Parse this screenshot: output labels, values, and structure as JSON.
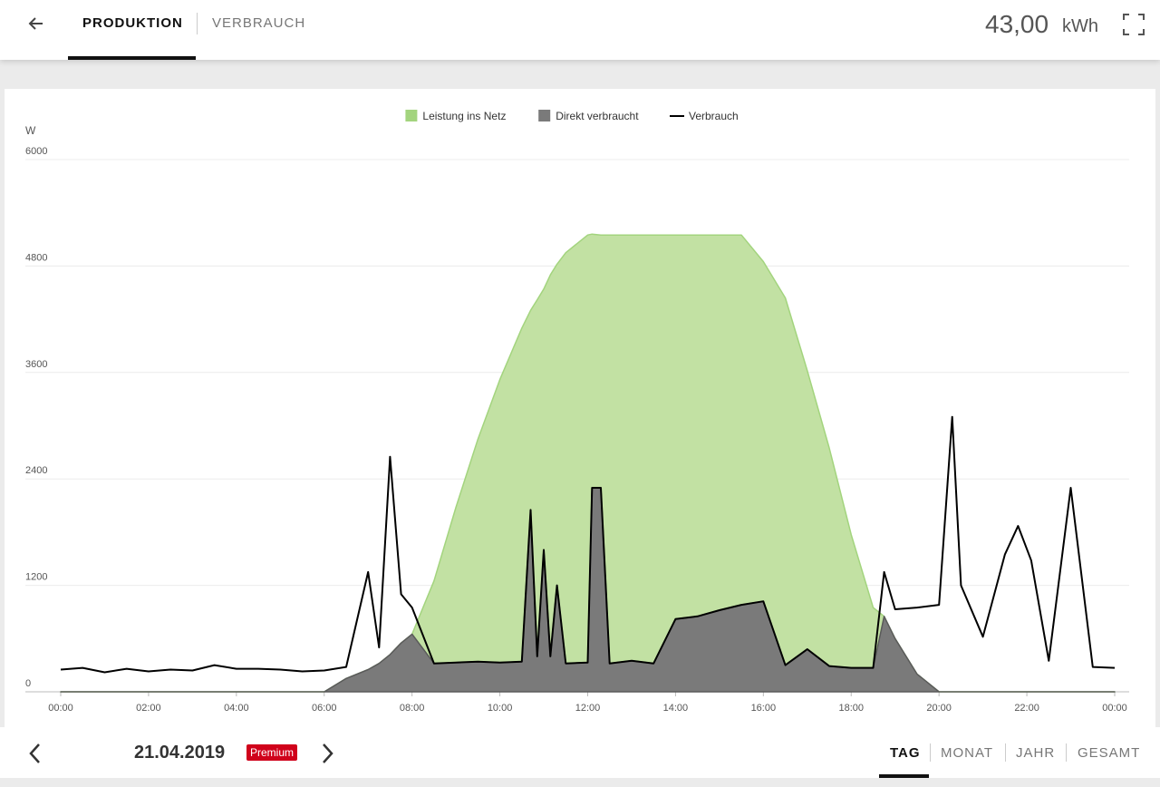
{
  "header": {
    "tabs": [
      "PRODUKTION",
      "VERBRAUCH"
    ],
    "total_value": "43,00",
    "total_unit": "kWh"
  },
  "chart_data": {
    "type": "area",
    "stacked": true,
    "y_label": "W",
    "xlim": [
      0,
      24
    ],
    "ylim": [
      0,
      6000
    ],
    "yticks": [
      0,
      1200,
      2400,
      3600,
      4800,
      6000
    ],
    "grid": true,
    "legend": "top",
    "xticks": [
      {
        "value": 0,
        "label": "00:00"
      },
      {
        "value": 2,
        "label": "02:00"
      },
      {
        "value": 4,
        "label": "04:00"
      },
      {
        "value": 6,
        "label": "06:00"
      },
      {
        "value": 8,
        "label": "08:00"
      },
      {
        "value": 10,
        "label": "10:00"
      },
      {
        "value": 12,
        "label": "12:00"
      },
      {
        "value": 14,
        "label": "14:00"
      },
      {
        "value": 16,
        "label": "16:00"
      },
      {
        "value": 18,
        "label": "18:00"
      },
      {
        "value": 20,
        "label": "20:00"
      },
      {
        "value": 22,
        "label": "22:00"
      },
      {
        "value": 24,
        "label": "00:00"
      }
    ],
    "x": [
      0,
      0.5,
      1,
      1.5,
      2,
      2.5,
      3,
      3.5,
      4,
      4.5,
      5,
      5.5,
      6,
      6.5,
      7,
      7.25,
      7.5,
      7.75,
      8,
      8.5,
      9,
      9.5,
      10,
      10.5,
      10.7,
      10.85,
      11,
      11.15,
      11.3,
      11.5,
      12,
      12.1,
      12.3,
      12.5,
      13,
      13.5,
      14,
      14.5,
      15,
      15.5,
      16,
      16.5,
      17,
      17.5,
      18,
      18.5,
      18.75,
      19,
      19.5,
      20,
      20.3,
      20.5,
      21,
      21.5,
      21.8,
      22.1,
      22.5,
      23,
      23.5,
      24
    ],
    "series": [
      {
        "name": "Leistung ins Netz",
        "type": "area",
        "color": "#c2e1a3",
        "stroke": "#a3d47e",
        "values": [
          0,
          0,
          0,
          0,
          0,
          0,
          0,
          0,
          0,
          0,
          0,
          0,
          0,
          0,
          0,
          0,
          0,
          0,
          0,
          930,
          1750,
          2510,
          3190,
          3760,
          2250,
          4020,
          2940,
          4300,
          3620,
          4630,
          4820,
          2860,
          2850,
          4830,
          4800,
          4830,
          4330,
          4300,
          4230,
          4170,
          3830,
          4140,
          3140,
          2460,
          1500,
          680,
          0,
          0,
          0,
          0,
          0,
          0,
          0,
          0,
          0,
          0,
          0,
          0,
          0,
          0
        ]
      },
      {
        "name": "Direkt verbraucht",
        "type": "area",
        "color": "#7a7a7a",
        "stroke": "#5a5a5a",
        "values": [
          0,
          0,
          0,
          0,
          0,
          0,
          0,
          0,
          0,
          0,
          0,
          0,
          0,
          150,
          250,
          320,
          420,
          550,
          650,
          320,
          330,
          340,
          330,
          340,
          2050,
          400,
          1600,
          400,
          1200,
          320,
          330,
          2300,
          2300,
          320,
          350,
          320,
          820,
          850,
          920,
          980,
          1020,
          300,
          480,
          290,
          270,
          270,
          850,
          600,
          200,
          0,
          0,
          0,
          0,
          0,
          0,
          0,
          0,
          0,
          0,
          0
        ]
      },
      {
        "name": "Verbrauch",
        "type": "line",
        "color": "#000000",
        "values": [
          250,
          270,
          220,
          260,
          230,
          250,
          240,
          300,
          260,
          260,
          250,
          230,
          240,
          280,
          1350,
          500,
          2650,
          1100,
          950,
          320,
          330,
          340,
          330,
          340,
          2050,
          400,
          1600,
          400,
          1200,
          320,
          330,
          2300,
          2300,
          320,
          350,
          320,
          820,
          850,
          920,
          980,
          1020,
          300,
          480,
          290,
          270,
          270,
          1350,
          930,
          950,
          980,
          3100,
          1200,
          620,
          1550,
          1870,
          1480,
          350,
          2300,
          280,
          270
        ]
      }
    ]
  },
  "footer": {
    "date": "21.04.2019",
    "badge": "Premium",
    "periods": [
      "TAG",
      "MONAT",
      "JAHR",
      "GESAMT"
    ]
  }
}
